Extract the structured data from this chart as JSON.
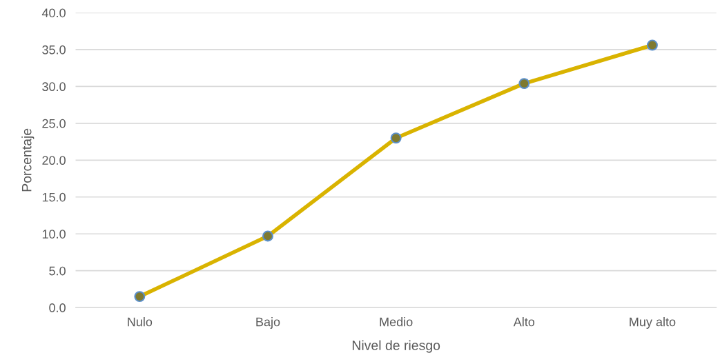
{
  "chart_data": {
    "type": "line",
    "xlabel": "Nivel de riesgo",
    "ylabel": "Porcentaje",
    "categories": [
      "Nulo",
      "Bajo",
      "Medio",
      "Alto",
      "Muy alto"
    ],
    "series": [
      {
        "color": "#d9b300",
        "values": [
          1.5,
          9.7,
          23.0,
          30.4,
          35.6
        ]
      }
    ],
    "ylim": [
      0,
      40
    ],
    "yticks": [
      {
        "value": 0,
        "label": "0.0"
      },
      {
        "value": 5,
        "label": "5.0"
      },
      {
        "value": 10,
        "label": "10.0"
      },
      {
        "value": 15,
        "label": "15.0"
      },
      {
        "value": 20,
        "label": "20.0"
      },
      {
        "value": 25,
        "label": "25.0"
      },
      {
        "value": 30,
        "label": "30.0"
      },
      {
        "value": 35,
        "label": "35.0"
      },
      {
        "value": 40,
        "label": "40.0"
      }
    ],
    "grid": "y",
    "marker": "circle",
    "line_style": "solid"
  }
}
